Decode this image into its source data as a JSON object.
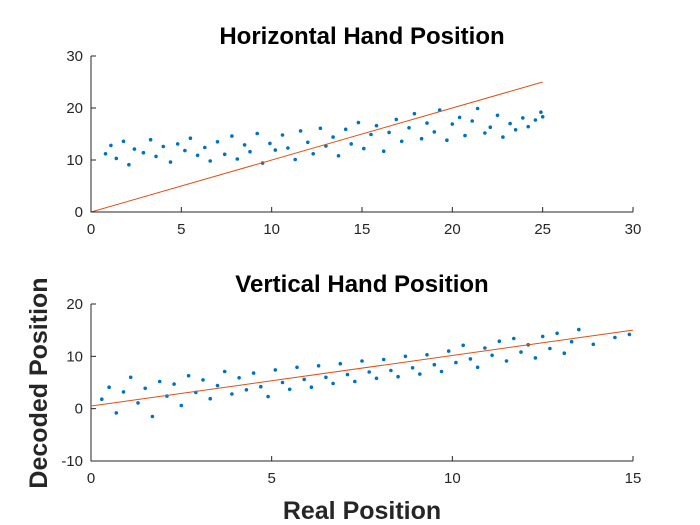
{
  "chart_data": [
    {
      "type": "scatter",
      "title": "Horizontal Hand Position",
      "xlim": [
        0,
        30
      ],
      "ylim": [
        0,
        30
      ],
      "xticks": [
        0,
        5,
        10,
        15,
        20,
        25,
        30
      ],
      "yticks": [
        0,
        10,
        20,
        30
      ],
      "grid": false,
      "point_color": "#0072BD",
      "line_color": "#D95319",
      "fit_line": {
        "x": [
          0,
          25
        ],
        "y": [
          0,
          25
        ]
      },
      "points": [
        [
          0.8,
          11.2
        ],
        [
          1.1,
          12.8
        ],
        [
          1.4,
          10.3
        ],
        [
          1.8,
          13.6
        ],
        [
          2.1,
          9.1
        ],
        [
          2.4,
          12.1
        ],
        [
          2.9,
          11.4
        ],
        [
          3.3,
          13.9
        ],
        [
          3.6,
          10.7
        ],
        [
          4.0,
          12.6
        ],
        [
          4.4,
          9.6
        ],
        [
          4.8,
          13.1
        ],
        [
          5.2,
          11.8
        ],
        [
          5.5,
          14.2
        ],
        [
          5.9,
          10.9
        ],
        [
          6.3,
          12.4
        ],
        [
          6.6,
          9.8
        ],
        [
          7.0,
          13.5
        ],
        [
          7.4,
          11.1
        ],
        [
          7.8,
          14.6
        ],
        [
          8.1,
          10.2
        ],
        [
          8.5,
          12.9
        ],
        [
          8.8,
          11.6
        ],
        [
          9.2,
          15.1
        ],
        [
          9.5,
          9.4
        ],
        [
          9.9,
          13.2
        ],
        [
          10.2,
          11.9
        ],
        [
          10.6,
          14.8
        ],
        [
          10.9,
          12.3
        ],
        [
          11.3,
          10.1
        ],
        [
          11.6,
          15.6
        ],
        [
          12.0,
          13.4
        ],
        [
          12.3,
          11.2
        ],
        [
          12.7,
          16.1
        ],
        [
          13.0,
          12.7
        ],
        [
          13.4,
          14.4
        ],
        [
          13.7,
          10.8
        ],
        [
          14.1,
          15.9
        ],
        [
          14.4,
          13.1
        ],
        [
          14.8,
          17.2
        ],
        [
          15.1,
          12.2
        ],
        [
          15.5,
          14.9
        ],
        [
          15.8,
          16.6
        ],
        [
          16.2,
          11.7
        ],
        [
          16.5,
          15.3
        ],
        [
          16.9,
          17.8
        ],
        [
          17.2,
          13.6
        ],
        [
          17.6,
          16.2
        ],
        [
          17.9,
          18.9
        ],
        [
          18.3,
          14.1
        ],
        [
          18.6,
          17.1
        ],
        [
          19.0,
          15.4
        ],
        [
          19.3,
          19.6
        ],
        [
          19.7,
          13.8
        ],
        [
          20.0,
          16.9
        ],
        [
          20.4,
          18.2
        ],
        [
          20.7,
          14.7
        ],
        [
          21.1,
          17.5
        ],
        [
          21.4,
          19.9
        ],
        [
          21.8,
          15.2
        ],
        [
          22.1,
          16.3
        ],
        [
          22.5,
          18.6
        ],
        [
          22.8,
          14.4
        ],
        [
          23.2,
          17.0
        ],
        [
          23.5,
          15.8
        ],
        [
          23.9,
          18.1
        ],
        [
          24.2,
          16.4
        ],
        [
          24.6,
          17.7
        ],
        [
          24.9,
          19.2
        ],
        [
          25.0,
          18.3
        ]
      ]
    },
    {
      "type": "scatter",
      "title": "Vertical Hand Position",
      "xlim": [
        0,
        15
      ],
      "ylim": [
        -10,
        20
      ],
      "xticks": [
        0,
        5,
        10,
        15
      ],
      "yticks": [
        -10,
        0,
        10,
        20
      ],
      "xlabel": "Real Position",
      "grid": false,
      "point_color": "#0072BD",
      "line_color": "#D95319",
      "fit_line": {
        "x": [
          0,
          15
        ],
        "y": [
          0.5,
          15
        ]
      },
      "points": [
        [
          0.3,
          1.8
        ],
        [
          0.5,
          4.1
        ],
        [
          0.7,
          -0.8
        ],
        [
          0.9,
          3.2
        ],
        [
          1.1,
          6.0
        ],
        [
          1.3,
          1.1
        ],
        [
          1.5,
          3.9
        ],
        [
          1.7,
          -1.5
        ],
        [
          1.9,
          5.2
        ],
        [
          2.1,
          2.4
        ],
        [
          2.3,
          4.7
        ],
        [
          2.5,
          0.6
        ],
        [
          2.7,
          6.3
        ],
        [
          2.9,
          3.1
        ],
        [
          3.1,
          5.5
        ],
        [
          3.3,
          1.9
        ],
        [
          3.5,
          4.4
        ],
        [
          3.7,
          7.1
        ],
        [
          3.9,
          2.8
        ],
        [
          4.1,
          5.9
        ],
        [
          4.3,
          3.6
        ],
        [
          4.5,
          6.8
        ],
        [
          4.7,
          4.2
        ],
        [
          4.9,
          2.3
        ],
        [
          5.1,
          7.4
        ],
        [
          5.3,
          5.0
        ],
        [
          5.5,
          3.7
        ],
        [
          5.7,
          7.9
        ],
        [
          5.9,
          5.6
        ],
        [
          6.1,
          4.1
        ],
        [
          6.3,
          8.2
        ],
        [
          6.5,
          6.0
        ],
        [
          6.7,
          4.8
        ],
        [
          6.9,
          8.6
        ],
        [
          7.1,
          6.5
        ],
        [
          7.3,
          5.2
        ],
        [
          7.5,
          9.1
        ],
        [
          7.7,
          7.0
        ],
        [
          7.9,
          5.8
        ],
        [
          8.1,
          9.4
        ],
        [
          8.3,
          7.3
        ],
        [
          8.5,
          6.1
        ],
        [
          8.7,
          10.0
        ],
        [
          8.9,
          7.8
        ],
        [
          9.1,
          6.6
        ],
        [
          9.3,
          10.3
        ],
        [
          9.5,
          8.4
        ],
        [
          9.7,
          7.1
        ],
        [
          9.9,
          11.0
        ],
        [
          10.1,
          8.8
        ],
        [
          10.3,
          12.1
        ],
        [
          10.5,
          9.5
        ],
        [
          10.7,
          7.9
        ],
        [
          10.9,
          11.6
        ],
        [
          11.1,
          10.2
        ],
        [
          11.3,
          12.9
        ],
        [
          11.5,
          9.1
        ],
        [
          11.7,
          13.4
        ],
        [
          11.9,
          10.8
        ],
        [
          12.1,
          12.2
        ],
        [
          12.3,
          9.7
        ],
        [
          12.5,
          13.8
        ],
        [
          12.7,
          11.5
        ],
        [
          12.9,
          14.4
        ],
        [
          13.1,
          10.6
        ],
        [
          13.3,
          12.8
        ],
        [
          13.5,
          15.1
        ],
        [
          13.9,
          12.3
        ],
        [
          14.5,
          13.6
        ],
        [
          14.9,
          14.2
        ]
      ]
    }
  ],
  "shared_ylabel": "Decoded Position"
}
